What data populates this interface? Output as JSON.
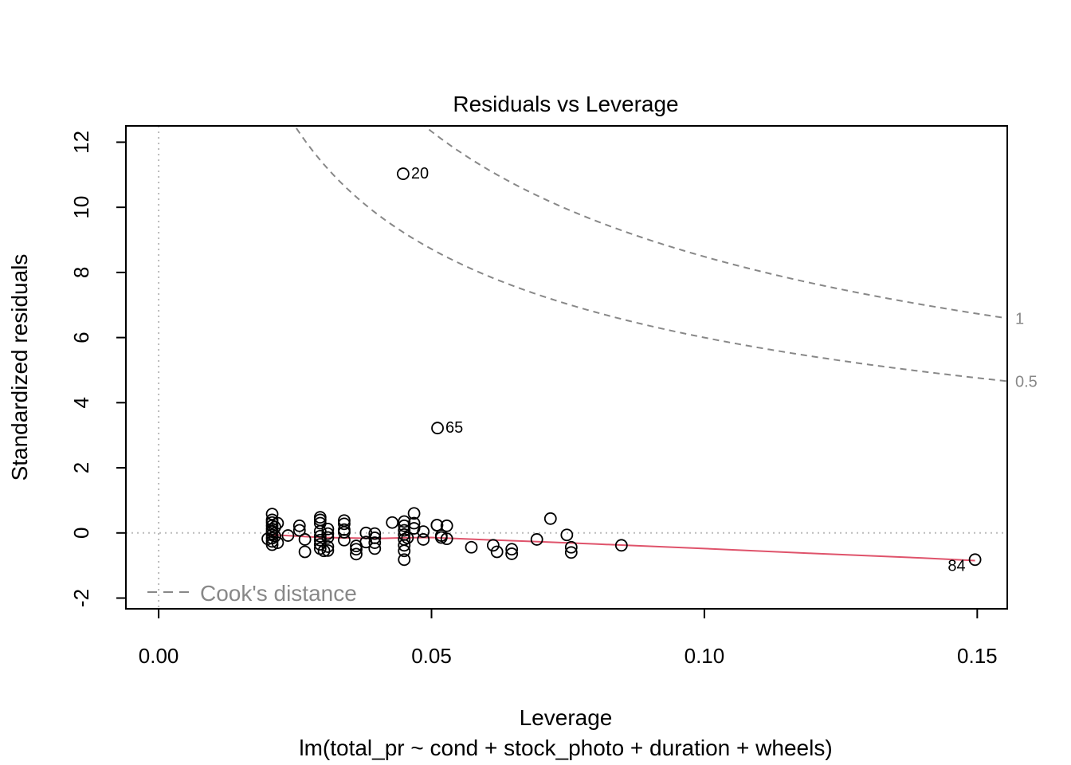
{
  "chart_data": {
    "type": "scatter",
    "title": "Residuals vs Leverage",
    "xlabel": "Leverage",
    "ylabel": "Standardized residuals",
    "subtitle": "lm(total_pr ~ cond + stock_photo + duration + wheels)",
    "xlim": [
      -0.006,
      0.1555
    ],
    "ylim": [
      -2.33,
      12.5
    ],
    "x_ticks": [
      0.0,
      0.05,
      0.1,
      0.15
    ],
    "x_tick_labels": [
      "0.00",
      "0.05",
      "0.10",
      "0.15"
    ],
    "y_ticks": [
      -2,
      0,
      2,
      4,
      6,
      8,
      10,
      12
    ],
    "y_tick_labels": [
      "-2",
      "0",
      "2",
      "4",
      "6",
      "8",
      "10",
      "12"
    ],
    "reference_lines": {
      "x": 0,
      "y": 0,
      "style": "dotted"
    },
    "colors": {
      "points": "#000000",
      "smooth": "#DF536B",
      "cook": "#888888",
      "ref": "#bbbbbb"
    },
    "points": [
      {
        "x": 0.0448,
        "y": 11.03,
        "label": "20"
      },
      {
        "x": 0.0511,
        "y": 3.22,
        "label": "65"
      },
      {
        "x": 0.1496,
        "y": -0.82,
        "label": "84"
      },
      {
        "x": 0.0208,
        "y": 0.58
      },
      {
        "x": 0.0208,
        "y": 0.4
      },
      {
        "x": 0.0208,
        "y": 0.32
      },
      {
        "x": 0.0208,
        "y": 0.22
      },
      {
        "x": 0.0208,
        "y": 0.12
      },
      {
        "x": 0.0208,
        "y": 0.04
      },
      {
        "x": 0.0208,
        "y": -0.06
      },
      {
        "x": 0.0208,
        "y": -0.16
      },
      {
        "x": 0.0208,
        "y": -0.26
      },
      {
        "x": 0.0208,
        "y": -0.36
      },
      {
        "x": 0.02,
        "y": -0.18
      },
      {
        "x": 0.0218,
        "y": 0.3
      },
      {
        "x": 0.0218,
        "y": -0.3
      },
      {
        "x": 0.0213,
        "y": 0.18
      },
      {
        "x": 0.0213,
        "y": -0.1
      },
      {
        "x": 0.0237,
        "y": -0.08
      },
      {
        "x": 0.0258,
        "y": 0.22
      },
      {
        "x": 0.0258,
        "y": 0.08
      },
      {
        "x": 0.0268,
        "y": -0.2
      },
      {
        "x": 0.0268,
        "y": -0.58
      },
      {
        "x": 0.0296,
        "y": 0.48
      },
      {
        "x": 0.0296,
        "y": 0.4
      },
      {
        "x": 0.0296,
        "y": 0.3
      },
      {
        "x": 0.0296,
        "y": 0.05
      },
      {
        "x": 0.0296,
        "y": -0.1
      },
      {
        "x": 0.0296,
        "y": -0.22
      },
      {
        "x": 0.0296,
        "y": -0.35
      },
      {
        "x": 0.0296,
        "y": -0.48
      },
      {
        "x": 0.0303,
        "y": -0.55
      },
      {
        "x": 0.031,
        "y": 0.12
      },
      {
        "x": 0.031,
        "y": -0.02
      },
      {
        "x": 0.031,
        "y": -0.14
      },
      {
        "x": 0.031,
        "y": -0.42
      },
      {
        "x": 0.031,
        "y": -0.54
      },
      {
        "x": 0.034,
        "y": 0.38
      },
      {
        "x": 0.034,
        "y": 0.28
      },
      {
        "x": 0.034,
        "y": 0.1
      },
      {
        "x": 0.034,
        "y": 0.02
      },
      {
        "x": 0.034,
        "y": -0.22
      },
      {
        "x": 0.0362,
        "y": -0.4
      },
      {
        "x": 0.0362,
        "y": -0.5
      },
      {
        "x": 0.0362,
        "y": -0.65
      },
      {
        "x": 0.038,
        "y": 0.0
      },
      {
        "x": 0.038,
        "y": -0.28
      },
      {
        "x": 0.0396,
        "y": -0.02
      },
      {
        "x": 0.0396,
        "y": -0.15
      },
      {
        "x": 0.0396,
        "y": -0.3
      },
      {
        "x": 0.0396,
        "y": -0.48
      },
      {
        "x": 0.0428,
        "y": 0.32
      },
      {
        "x": 0.045,
        "y": 0.35
      },
      {
        "x": 0.045,
        "y": 0.22
      },
      {
        "x": 0.045,
        "y": 0.08
      },
      {
        "x": 0.045,
        "y": -0.05
      },
      {
        "x": 0.045,
        "y": -0.2
      },
      {
        "x": 0.045,
        "y": -0.38
      },
      {
        "x": 0.045,
        "y": -0.55
      },
      {
        "x": 0.045,
        "y": -0.82
      },
      {
        "x": 0.0456,
        "y": -0.15
      },
      {
        "x": 0.0468,
        "y": 0.6
      },
      {
        "x": 0.0468,
        "y": 0.3
      },
      {
        "x": 0.0468,
        "y": 0.14
      },
      {
        "x": 0.0485,
        "y": 0.04
      },
      {
        "x": 0.0485,
        "y": -0.2
      },
      {
        "x": 0.051,
        "y": 0.24
      },
      {
        "x": 0.051,
        "y": 0.24
      },
      {
        "x": 0.0518,
        "y": -0.08
      },
      {
        "x": 0.0518,
        "y": -0.14
      },
      {
        "x": 0.0528,
        "y": 0.22
      },
      {
        "x": 0.0528,
        "y": -0.18
      },
      {
        "x": 0.0573,
        "y": -0.44
      },
      {
        "x": 0.0613,
        "y": -0.38
      },
      {
        "x": 0.062,
        "y": -0.58
      },
      {
        "x": 0.0647,
        "y": -0.5
      },
      {
        "x": 0.0647,
        "y": -0.64
      },
      {
        "x": 0.0693,
        "y": -0.2
      },
      {
        "x": 0.0718,
        "y": 0.44
      },
      {
        "x": 0.0748,
        "y": -0.06
      },
      {
        "x": 0.0756,
        "y": -0.44
      },
      {
        "x": 0.0756,
        "y": -0.6
      },
      {
        "x": 0.0848,
        "y": -0.38
      }
    ],
    "smooth_line": [
      {
        "x": 0.02,
        "y": -0.05
      },
      {
        "x": 0.03,
        "y": -0.14
      },
      {
        "x": 0.04,
        "y": -0.17
      },
      {
        "x": 0.045,
        "y": -0.15
      },
      {
        "x": 0.05,
        "y": -0.14
      },
      {
        "x": 0.06,
        "y": -0.21
      },
      {
        "x": 0.07,
        "y": -0.27
      },
      {
        "x": 0.08,
        "y": -0.34
      },
      {
        "x": 0.1,
        "y": -0.48
      },
      {
        "x": 0.12,
        "y": -0.63
      },
      {
        "x": 0.14,
        "y": -0.77
      },
      {
        "x": 0.1496,
        "y": -0.85
      }
    ],
    "cook_levels": [
      {
        "level": 0.5,
        "label": "0.5"
      },
      {
        "level": 1,
        "label": "1"
      }
    ],
    "cook_params": {
      "p": 8
    },
    "legend": {
      "entry": "Cook's distance",
      "position": "bottom-left",
      "line_style": "dashed"
    }
  }
}
